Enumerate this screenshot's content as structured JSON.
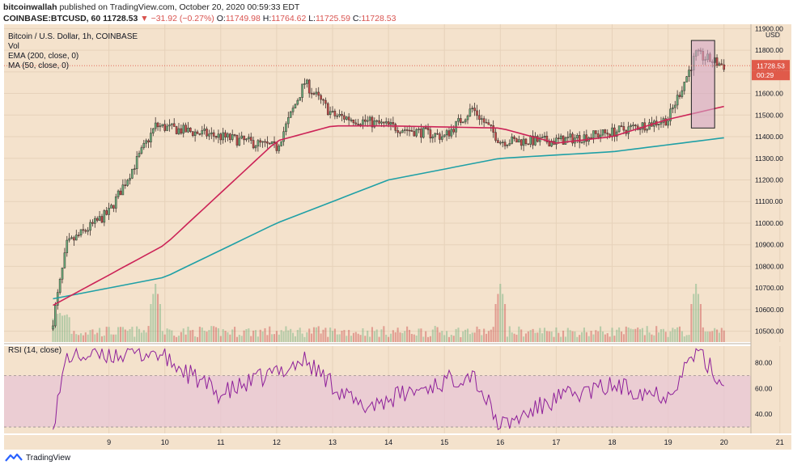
{
  "header": {
    "author": "bitcoinwallah",
    "published_text": "published on TradingView.com, October 20, 2020 00:59:33 EDT",
    "symbol": "COINBASE:BTCUSD, 60",
    "last": "11728.53",
    "change_arrow": "▼",
    "change": "−31.92 (−0.27%)",
    "open_label": "O:",
    "open": "11749.98",
    "high_label": "H:",
    "high": "11764.62",
    "low_label": "L:",
    "low": "11725.59",
    "close_label": "C:",
    "close": "11728.53"
  },
  "legend": {
    "title": "Bitcoin / U.S. Dollar, 1h, COINBASE",
    "vol": "Vol",
    "ema": "EMA (200, close, 0)",
    "ma": "MA (50, close, 0)"
  },
  "axis": {
    "currency": "USD",
    "price_ticks": [
      "11900.00",
      "11800.00",
      "11700.00",
      "11600.00",
      "11500.00",
      "11400.00",
      "11300.00",
      "11200.00",
      "11100.00",
      "11000.00",
      "10900.00",
      "10800.00",
      "10700.00",
      "10600.00",
      "10500.00"
    ],
    "rsi_ticks": [
      "80.00",
      "60.00",
      "40.00"
    ],
    "x_ticks": [
      "9",
      "10",
      "11",
      "12",
      "13",
      "14",
      "15",
      "16",
      "17",
      "18",
      "19",
      "20",
      "21"
    ],
    "price_tag": "11728.53",
    "countdown": "00:29"
  },
  "rsi": {
    "label": "RSI (14, close)",
    "upper": 70,
    "lower": 30
  },
  "footer": {
    "brand": "TradingView"
  },
  "colors": {
    "background": "#f4e2cc",
    "up": "#6ab07d",
    "down": "#c94a4a",
    "ema": "#1fa0a6",
    "ma": "#cc2357",
    "rsi_line": "#8e1f9a",
    "rsi_band": "#e8c5d6",
    "highlight": "#d4a6c4",
    "price_tag": "#e05a4a"
  },
  "chart_data": {
    "type": "candlestick",
    "title": "Bitcoin / U.S. Dollar, 1h, COINBASE",
    "x_range_dates": [
      "Oct 8",
      "Oct 21"
    ],
    "ylim": [
      10450,
      11920
    ],
    "rsi_ylim": [
      25,
      93
    ],
    "ohlc_keypoints": [
      {
        "date": "Oct 8 00:00",
        "close": 10550
      },
      {
        "date": "Oct 8 06:00",
        "close": 10900
      },
      {
        "date": "Oct 9 00:00",
        "close": 11050
      },
      {
        "date": "Oct 9 20:00",
        "close": 11450
      },
      {
        "date": "Oct 11 00:00",
        "close": 11400
      },
      {
        "date": "Oct 12 00:00",
        "close": 11350
      },
      {
        "date": "Oct 12 12:00",
        "close": 11650
      },
      {
        "date": "Oct 13 00:00",
        "close": 11500
      },
      {
        "date": "Oct 14 00:00",
        "close": 11450
      },
      {
        "date": "Oct 15 00:00",
        "close": 11400
      },
      {
        "date": "Oct 15 12:00",
        "close": 11530
      },
      {
        "date": "Oct 16 00:00",
        "close": 11380
      },
      {
        "date": "Oct 17 00:00",
        "close": 11380
      },
      {
        "date": "Oct 18 00:00",
        "close": 11420
      },
      {
        "date": "Oct 19 00:00",
        "close": 11480
      },
      {
        "date": "Oct 19 12:00",
        "close": 11780
      },
      {
        "date": "Oct 20 00:00",
        "close": 11728.53
      }
    ],
    "ema_200_keypoints": [
      {
        "date": "Oct 8",
        "value": 10650
      },
      {
        "date": "Oct 10",
        "value": 10750
      },
      {
        "date": "Oct 12",
        "value": 11000
      },
      {
        "date": "Oct 14",
        "value": 11200
      },
      {
        "date": "Oct 16",
        "value": 11300
      },
      {
        "date": "Oct 18",
        "value": 11330
      },
      {
        "date": "Oct 20",
        "value": 11395
      }
    ],
    "ma_50_keypoints": [
      {
        "date": "Oct 8",
        "value": 10620
      },
      {
        "date": "Oct 10",
        "value": 10900
      },
      {
        "date": "Oct 12",
        "value": 11380
      },
      {
        "date": "Oct 13",
        "value": 11450
      },
      {
        "date": "Oct 14",
        "value": 11450
      },
      {
        "date": "Oct 16",
        "value": 11440
      },
      {
        "date": "Oct 17",
        "value": 11370
      },
      {
        "date": "Oct 18",
        "value": 11400
      },
      {
        "date": "Oct 19",
        "value": 11480
      },
      {
        "date": "Oct 20",
        "value": 11540
      }
    ],
    "volume_spikes": [
      {
        "date": "Oct 9 20:00",
        "direction": "up"
      },
      {
        "date": "Oct 16 00:00",
        "direction": "down"
      },
      {
        "date": "Oct 19 12:00",
        "direction": "up"
      }
    ],
    "rsi_keypoints": [
      {
        "date": "Oct 8 00:00",
        "value": 32
      },
      {
        "date": "Oct 8 06:00",
        "value": 85
      },
      {
        "date": "Oct 9 20:00",
        "value": 88
      },
      {
        "date": "Oct 11 00:00",
        "value": 55
      },
      {
        "date": "Oct 12 12:00",
        "value": 82
      },
      {
        "date": "Oct 13 12:00",
        "value": 45
      },
      {
        "date": "Oct 15 12:00",
        "value": 72
      },
      {
        "date": "Oct 16 00:00",
        "value": 30
      },
      {
        "date": "Oct 17 00:00",
        "value": 52
      },
      {
        "date": "Oct 18 00:00",
        "value": 62
      },
      {
        "date": "Oct 19 00:00",
        "value": 55
      },
      {
        "date": "Oct 19 12:00",
        "value": 90
      },
      {
        "date": "Oct 20 00:00",
        "value": 62
      }
    ],
    "rsi_band": [
      30,
      70
    ],
    "last_price": 11728.53,
    "highlight_box": {
      "from": "Oct 19 10:00",
      "to": "Oct 19 20:00",
      "low": 11440,
      "high": 11845
    }
  }
}
